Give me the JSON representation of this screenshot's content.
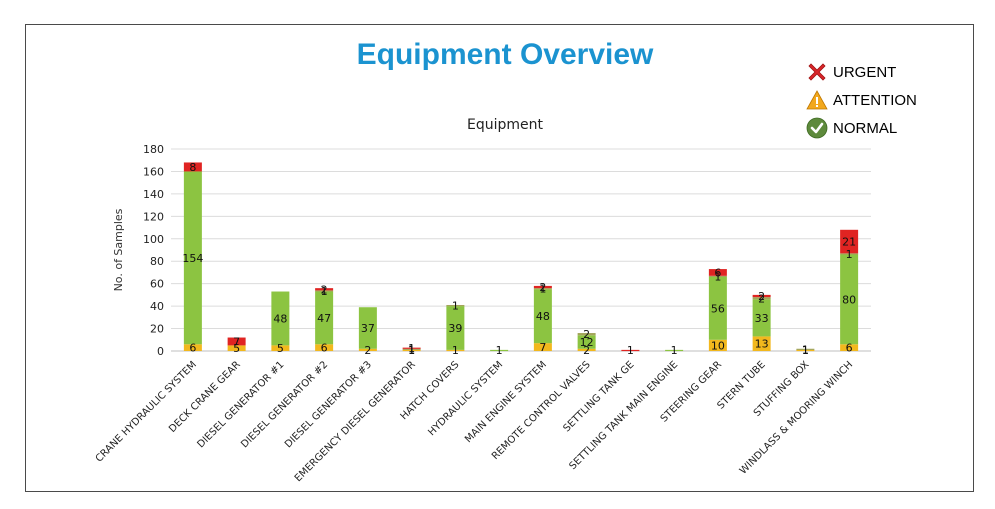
{
  "page_title": "Equipment Overview",
  "legend": [
    {
      "label": "URGENT",
      "icon": "x-cross-icon",
      "color": "#d9262b"
    },
    {
      "label": "ATTENTION",
      "icon": "warning-triangle-icon",
      "color": "#f2a81d"
    },
    {
      "label": "NORMAL",
      "icon": "checkmark-circle-icon",
      "color": "#5e8a3c"
    }
  ],
  "chart_data": {
    "type": "bar",
    "stacked": true,
    "title": "Equipment",
    "xlabel": "",
    "ylabel": "No. of Samples",
    "ylim": [
      0,
      180
    ],
    "yticks": [
      0,
      20,
      40,
      60,
      80,
      100,
      120,
      140,
      160,
      180
    ],
    "grid": true,
    "categories": [
      "CRANE HYDRAULIC SYSTEM",
      "DECK CRANE GEAR",
      "DIESEL GENERATOR #1",
      "DIESEL GENERATOR #2",
      "DIESEL GENERATOR #3",
      "EMERGENCY DIESEL GENERATOR",
      "HATCH COVERS",
      "HYDRAULIC SYSTEM",
      "MAIN ENGINE SYSTEM",
      "REMOTE CONTROL VALVES",
      "SETTLING TANK GE",
      "SETTLING TANK MAIN ENGINE",
      "STEERING GEAR",
      "STERN TUBE",
      "STUFFING BOX",
      "WINDLASS & MOORING WINCH"
    ],
    "series": [
      {
        "color": "#f2b81d",
        "values": [
          6,
          5,
          5,
          6,
          2,
          1,
          1,
          0,
          7,
          2,
          0,
          0,
          10,
          13,
          1,
          6
        ]
      },
      {
        "color": "#8cc441",
        "values": [
          154,
          0,
          48,
          47,
          37,
          0,
          39,
          1,
          48,
          12,
          0,
          1,
          56,
          33,
          0,
          80
        ]
      },
      {
        "color": "#a3a55a",
        "values": [
          0,
          0,
          0,
          1,
          0,
          1,
          1,
          0,
          1,
          2,
          0,
          0,
          1,
          2,
          1,
          1
        ]
      },
      {
        "color": "#e02422",
        "values": [
          8,
          7,
          0,
          2,
          0,
          1,
          0,
          0,
          2,
          0,
          1,
          0,
          6,
          2,
          0,
          21
        ]
      }
    ]
  }
}
